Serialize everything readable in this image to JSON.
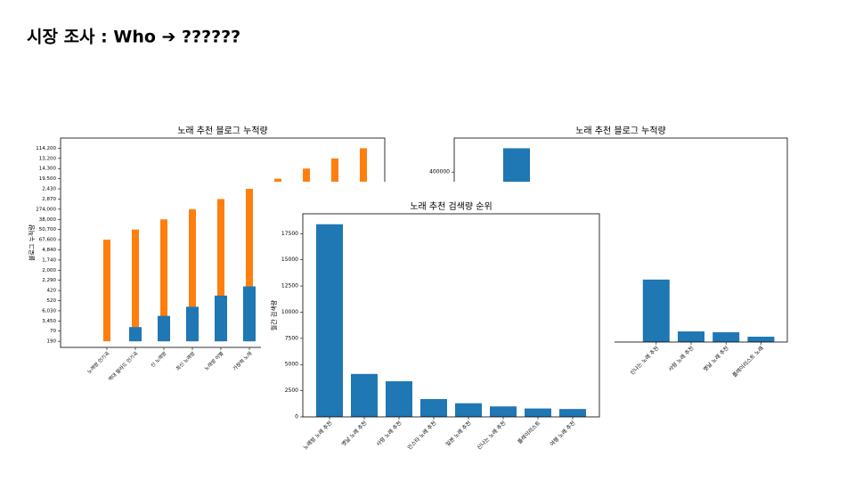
{
  "slide": {
    "title": "시장 조사 : Who ➔ ??????"
  },
  "chart_data": [
    {
      "type": "bar",
      "title": "노래 추천 블로그 누적량",
      "y_label": "블로그 누적량",
      "categories": [
        "노래방 인기곡",
        "역대 발라드 인기곡",
        "신 노래방",
        "최신 노래방",
        "노래방 이별",
        "가창력 노래",
        null,
        null,
        null,
        null
      ],
      "series": [
        {
          "color": "#ff7f0e",
          "values": [
            10,
            11,
            12,
            13,
            14,
            15,
            16,
            17,
            18,
            19
          ]
        },
        {
          "color": "#1f77b4",
          "values": [
            null,
            1.4,
            2.5,
            3.4,
            4.5,
            5.4,
            null,
            null,
            null,
            null
          ]
        }
      ],
      "ylim": [
        -0.6,
        20
      ],
      "yticks": [
        {
          "value": 0,
          "label": "190"
        },
        {
          "value": 1,
          "label": "70"
        },
        {
          "value": 2,
          "label": "3,450"
        },
        {
          "value": 3,
          "label": "6,030"
        },
        {
          "value": 4,
          "label": "520"
        },
        {
          "value": 5,
          "label": "420"
        },
        {
          "value": 6,
          "label": "2,290"
        },
        {
          "value": 7,
          "label": "2,000"
        },
        {
          "value": 8,
          "label": "1,740"
        },
        {
          "value": 9,
          "label": "4,840"
        },
        {
          "value": 10,
          "label": "67,600"
        },
        {
          "value": 11,
          "label": "50,700"
        },
        {
          "value": 12,
          "label": "38,000"
        },
        {
          "value": 13,
          "label": "274,000"
        },
        {
          "value": 14,
          "label": "2,870"
        },
        {
          "value": 15,
          "label": "2,430"
        },
        {
          "value": 16,
          "label": "19,500"
        },
        {
          "value": 17,
          "label": "14,300"
        },
        {
          "value": 18,
          "label": "13,200"
        },
        {
          "value": 19,
          "label": "114,200"
        }
      ]
    },
    {
      "type": "bar",
      "title": "노래 추천 블로그 누적량",
      "categories": [
        null,
        null,
        null,
        null,
        "신나는 노래 추천",
        "사랑 노래 추천",
        "옛날 노래 추천",
        "플레이리스트 노래"
      ],
      "series": [
        {
          "color": "#1f77b4",
          "values": [
            456000,
            null,
            null,
            null,
            147000,
            25000,
            23000,
            12600
          ]
        }
      ],
      "ylim": [
        0,
        480000
      ],
      "yticks": [
        400000
      ]
    },
    {
      "type": "bar",
      "title": "노래 추천 검색량 순위",
      "y_label": "월간 검색량",
      "categories": [
        "노래방 노래 추천",
        "옛날 노래 추천",
        "사랑 노래 추천",
        "인스타 노래 추천",
        "일본 노래 추천",
        "신나는 노래 추천",
        "플레이리스트",
        "여행 노래 추천"
      ],
      "series": [
        {
          "color": "#1f77b4",
          "values": [
            18400,
            4100,
            3400,
            1700,
            1300,
            1000,
            800,
            750
          ]
        }
      ],
      "ylim": [
        0,
        19400
      ],
      "yticks": [
        0,
        2500,
        5000,
        7500,
        10000,
        12500,
        15000,
        17500
      ]
    }
  ]
}
